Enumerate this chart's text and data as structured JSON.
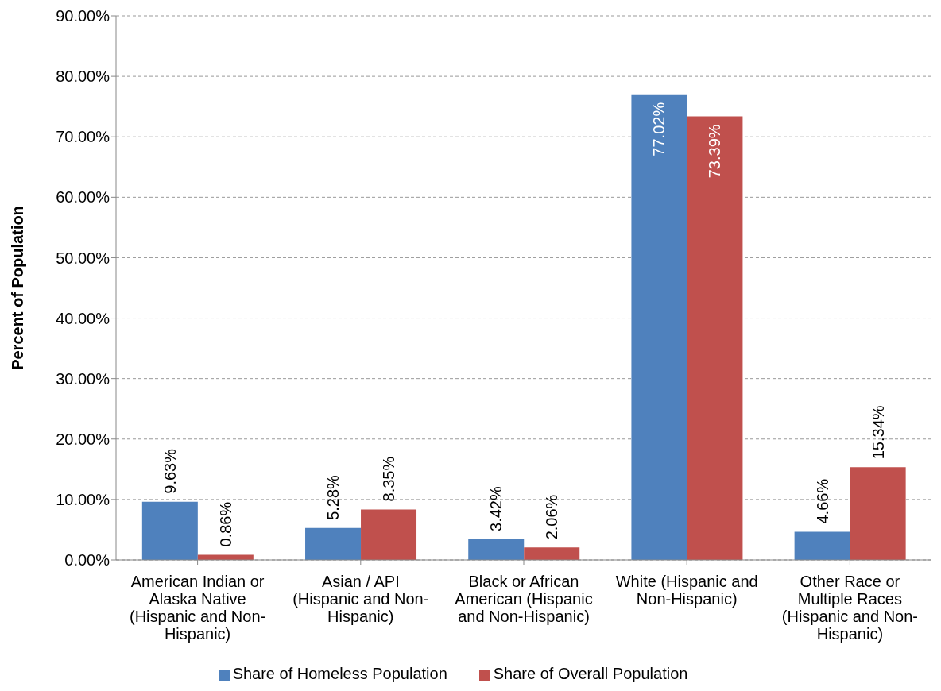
{
  "chart_data": {
    "type": "bar",
    "ylabel": "Percent of Population",
    "categories": [
      "American Indian or Alaska Native (Hispanic and Non-Hispanic)",
      "Asian / API (Hispanic and Non-Hispanic)",
      "Black or African American (Hispanic and Non-Hispanic)",
      "White (Hispanic and Non-Hispanic)",
      "Other Race or Multiple Races (Hispanic and Non-Hispanic)"
    ],
    "series": [
      {
        "name": "Share of Homeless Population",
        "color": "#4f81bd",
        "values": [
          9.63,
          5.28,
          3.42,
          77.02,
          4.66
        ],
        "value_labels": [
          "9.63%",
          "5.28%",
          "3.42%",
          "77.02%",
          "4.66%"
        ]
      },
      {
        "name": "Share of Overall Population",
        "color": "#c0504d",
        "values": [
          0.86,
          8.35,
          2.06,
          73.39,
          15.34
        ],
        "value_labels": [
          "0.86%",
          "8.35%",
          "2.06%",
          "73.39%",
          "15.34%"
        ]
      }
    ],
    "ylim": [
      0,
      90
    ],
    "yticks": [
      {
        "value": 0,
        "label": "0.00%"
      },
      {
        "value": 10,
        "label": "10.00%"
      },
      {
        "value": 20,
        "label": "20.00%"
      },
      {
        "value": 30,
        "label": "30.00%"
      },
      {
        "value": 40,
        "label": "40.00%"
      },
      {
        "value": 50,
        "label": "50.00%"
      },
      {
        "value": 60,
        "label": "60.00%"
      },
      {
        "value": 70,
        "label": "70.00%"
      },
      {
        "value": 80,
        "label": "80.00%"
      },
      {
        "value": 90,
        "label": "90.00%"
      }
    ],
    "grid": "y",
    "legend": "bottom"
  }
}
